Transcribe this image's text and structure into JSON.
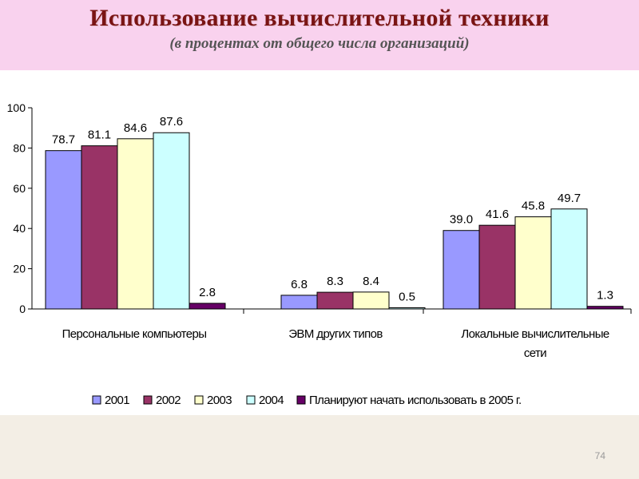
{
  "slide": {
    "title": "Использование вычислительной техники",
    "subtitle": "(в процентах от общего числа организаций)",
    "page_number": "74"
  },
  "colors": {
    "banner": "#f9d2ee",
    "title": "#7a1414",
    "background": "#f3eee5"
  },
  "chart_data": {
    "type": "bar",
    "title": "",
    "xlabel": "",
    "ylabel": "",
    "ylim": [
      0,
      100
    ],
    "yticks": [
      0,
      20,
      40,
      60,
      80,
      100
    ],
    "grid": false,
    "legend_position": "bottom",
    "categories": [
      [
        "Персональные компьютеры"
      ],
      [
        "ЭВМ других типов"
      ],
      [
        "Локальные вычислительные",
        "сети"
      ]
    ],
    "series": [
      {
        "name": "2001",
        "color": "#9999ff",
        "values": [
          78.7,
          6.8,
          39.0
        ],
        "labels": [
          "78.7",
          "6.8",
          "39.0"
        ]
      },
      {
        "name": "2002",
        "color": "#993366",
        "values": [
          81.1,
          8.3,
          41.6
        ],
        "labels": [
          "81.1",
          "8.3",
          "41.6"
        ]
      },
      {
        "name": "2003",
        "color": "#ffffcc",
        "values": [
          84.6,
          8.4,
          45.8
        ],
        "labels": [
          "84.6",
          "8.4",
          "45.8"
        ]
      },
      {
        "name": "2004",
        "color": "#ccffff",
        "values": [
          87.6,
          0.5,
          49.7
        ],
        "labels": [
          "87.6",
          "0.5",
          "49.7"
        ]
      },
      {
        "name": "Планируют начать использовать в 2005 г.",
        "color": "#660066",
        "values": [
          2.8,
          null,
          1.3
        ],
        "labels": [
          "2.8",
          "",
          "1.3"
        ]
      }
    ]
  }
}
